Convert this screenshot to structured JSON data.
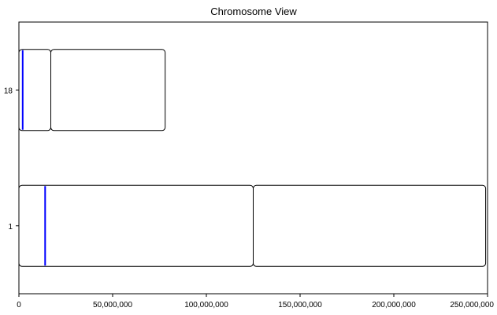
{
  "chart_data": {
    "type": "bar",
    "title": "Chromosome View",
    "xlabel": "",
    "ylabel": "",
    "xlim": [
      0,
      250000000
    ],
    "x_ticks": [
      0,
      50000000,
      100000000,
      150000000,
      200000000,
      250000000
    ],
    "x_tick_labels": [
      "0",
      "50,000,000",
      "100,000,000",
      "150,000,000",
      "200,000,000",
      "250,000,000"
    ],
    "grid": false,
    "chromosomes": [
      {
        "name": "18",
        "arms": [
          {
            "start": 0,
            "end": 17000000
          },
          {
            "start": 17000000,
            "end": 78000000
          }
        ],
        "markers": [
          2000000
        ]
      },
      {
        "name": "1",
        "arms": [
          {
            "start": 0,
            "end": 125000000
          },
          {
            "start": 125000000,
            "end": 249000000
          }
        ],
        "markers": [
          14000000
        ]
      }
    ],
    "colors": {
      "outline": "#000000",
      "marker": "#0000ff",
      "background": "#ffffff"
    }
  }
}
